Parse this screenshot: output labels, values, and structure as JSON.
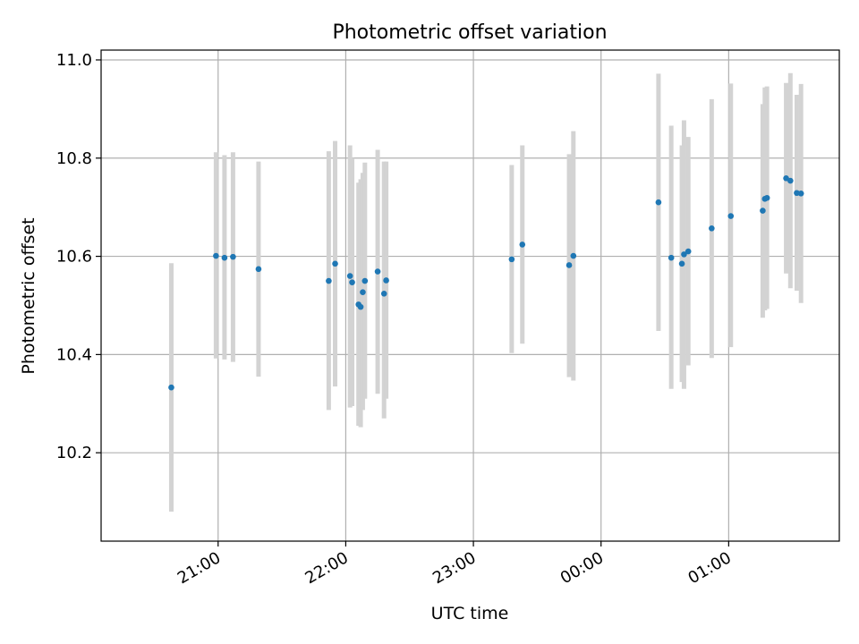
{
  "chart_data": {
    "type": "scatter",
    "title": "Photometric offset variation",
    "xlabel": "UTC time",
    "ylabel": "Photometric offset",
    "x_tick_labels": [
      "21:00",
      "22:00",
      "23:00",
      "00:00",
      "01:00"
    ],
    "y_tick_labels": [
      "10.2",
      "10.4",
      "10.6",
      "10.8",
      "11.0"
    ],
    "y_ticks": [
      10.2,
      10.4,
      10.6,
      10.8,
      11.0
    ],
    "xlim": [
      "20:05",
      "01:52"
    ],
    "ylim": [
      10.02,
      11.02
    ],
    "grid": true,
    "series": [
      {
        "marker_color": "#1f77b4",
        "errorbar_color": "#d3d3d3",
        "points": [
          {
            "x": "20:38",
            "y": 10.333,
            "lo": 10.08,
            "hi": 10.586
          },
          {
            "x": "20:59",
            "y": 10.601,
            "lo": 10.392,
            "hi": 10.812
          },
          {
            "x": "21:03",
            "y": 10.597,
            "lo": 10.39,
            "hi": 10.806
          },
          {
            "x": "21:07",
            "y": 10.599,
            "lo": 10.385,
            "hi": 10.812
          },
          {
            "x": "21:19",
            "y": 10.574,
            "lo": 10.355,
            "hi": 10.793
          },
          {
            "x": "21:52",
            "y": 10.55,
            "lo": 10.287,
            "hi": 10.814
          },
          {
            "x": "21:55",
            "y": 10.585,
            "lo": 10.335,
            "hi": 10.835
          },
          {
            "x": "22:02",
            "y": 10.56,
            "lo": 10.292,
            "hi": 10.826
          },
          {
            "x": "22:03",
            "y": 10.547,
            "lo": 10.295,
            "hi": 10.8
          },
          {
            "x": "22:06",
            "y": 10.502,
            "lo": 10.255,
            "hi": 10.75
          },
          {
            "x": "22:07",
            "y": 10.497,
            "lo": 10.252,
            "hi": 10.757
          },
          {
            "x": "22:08",
            "y": 10.527,
            "lo": 10.287,
            "hi": 10.77
          },
          {
            "x": "22:09",
            "y": 10.55,
            "lo": 10.31,
            "hi": 10.791
          },
          {
            "x": "22:15",
            "y": 10.569,
            "lo": 10.32,
            "hi": 10.817
          },
          {
            "x": "22:18",
            "y": 10.524,
            "lo": 10.27,
            "hi": 10.793
          },
          {
            "x": "22:19",
            "y": 10.551,
            "lo": 10.31,
            "hi": 10.793
          },
          {
            "x": "23:18",
            "y": 10.594,
            "lo": 10.403,
            "hi": 10.786
          },
          {
            "x": "23:23",
            "y": 10.624,
            "lo": 10.422,
            "hi": 10.826
          },
          {
            "x": "23:45",
            "y": 10.582,
            "lo": 10.354,
            "hi": 10.808
          },
          {
            "x": "23:47",
            "y": 10.601,
            "lo": 10.347,
            "hi": 10.855
          },
          {
            "x": "00:27",
            "y": 10.71,
            "lo": 10.448,
            "hi": 10.972
          },
          {
            "x": "00:33",
            "y": 10.597,
            "lo": 10.33,
            "hi": 10.866
          },
          {
            "x": "00:38",
            "y": 10.585,
            "lo": 10.344,
            "hi": 10.826
          },
          {
            "x": "00:39",
            "y": 10.604,
            "lo": 10.33,
            "hi": 10.877
          },
          {
            "x": "00:41",
            "y": 10.61,
            "lo": 10.378,
            "hi": 10.843
          },
          {
            "x": "00:52",
            "y": 10.657,
            "lo": 10.393,
            "hi": 10.92
          },
          {
            "x": "01:01",
            "y": 10.682,
            "lo": 10.415,
            "hi": 10.952
          },
          {
            "x": "01:16",
            "y": 10.693,
            "lo": 10.475,
            "hi": 10.91
          },
          {
            "x": "01:17",
            "y": 10.717,
            "lo": 10.49,
            "hi": 10.944
          },
          {
            "x": "01:18",
            "y": 10.719,
            "lo": 10.493,
            "hi": 10.946
          },
          {
            "x": "01:27",
            "y": 10.759,
            "lo": 10.565,
            "hi": 10.953
          },
          {
            "x": "01:29",
            "y": 10.754,
            "lo": 10.535,
            "hi": 10.973
          },
          {
            "x": "01:32",
            "y": 10.729,
            "lo": 10.53,
            "hi": 10.929
          },
          {
            "x": "01:34",
            "y": 10.728,
            "lo": 10.505,
            "hi": 10.951
          }
        ]
      }
    ]
  }
}
